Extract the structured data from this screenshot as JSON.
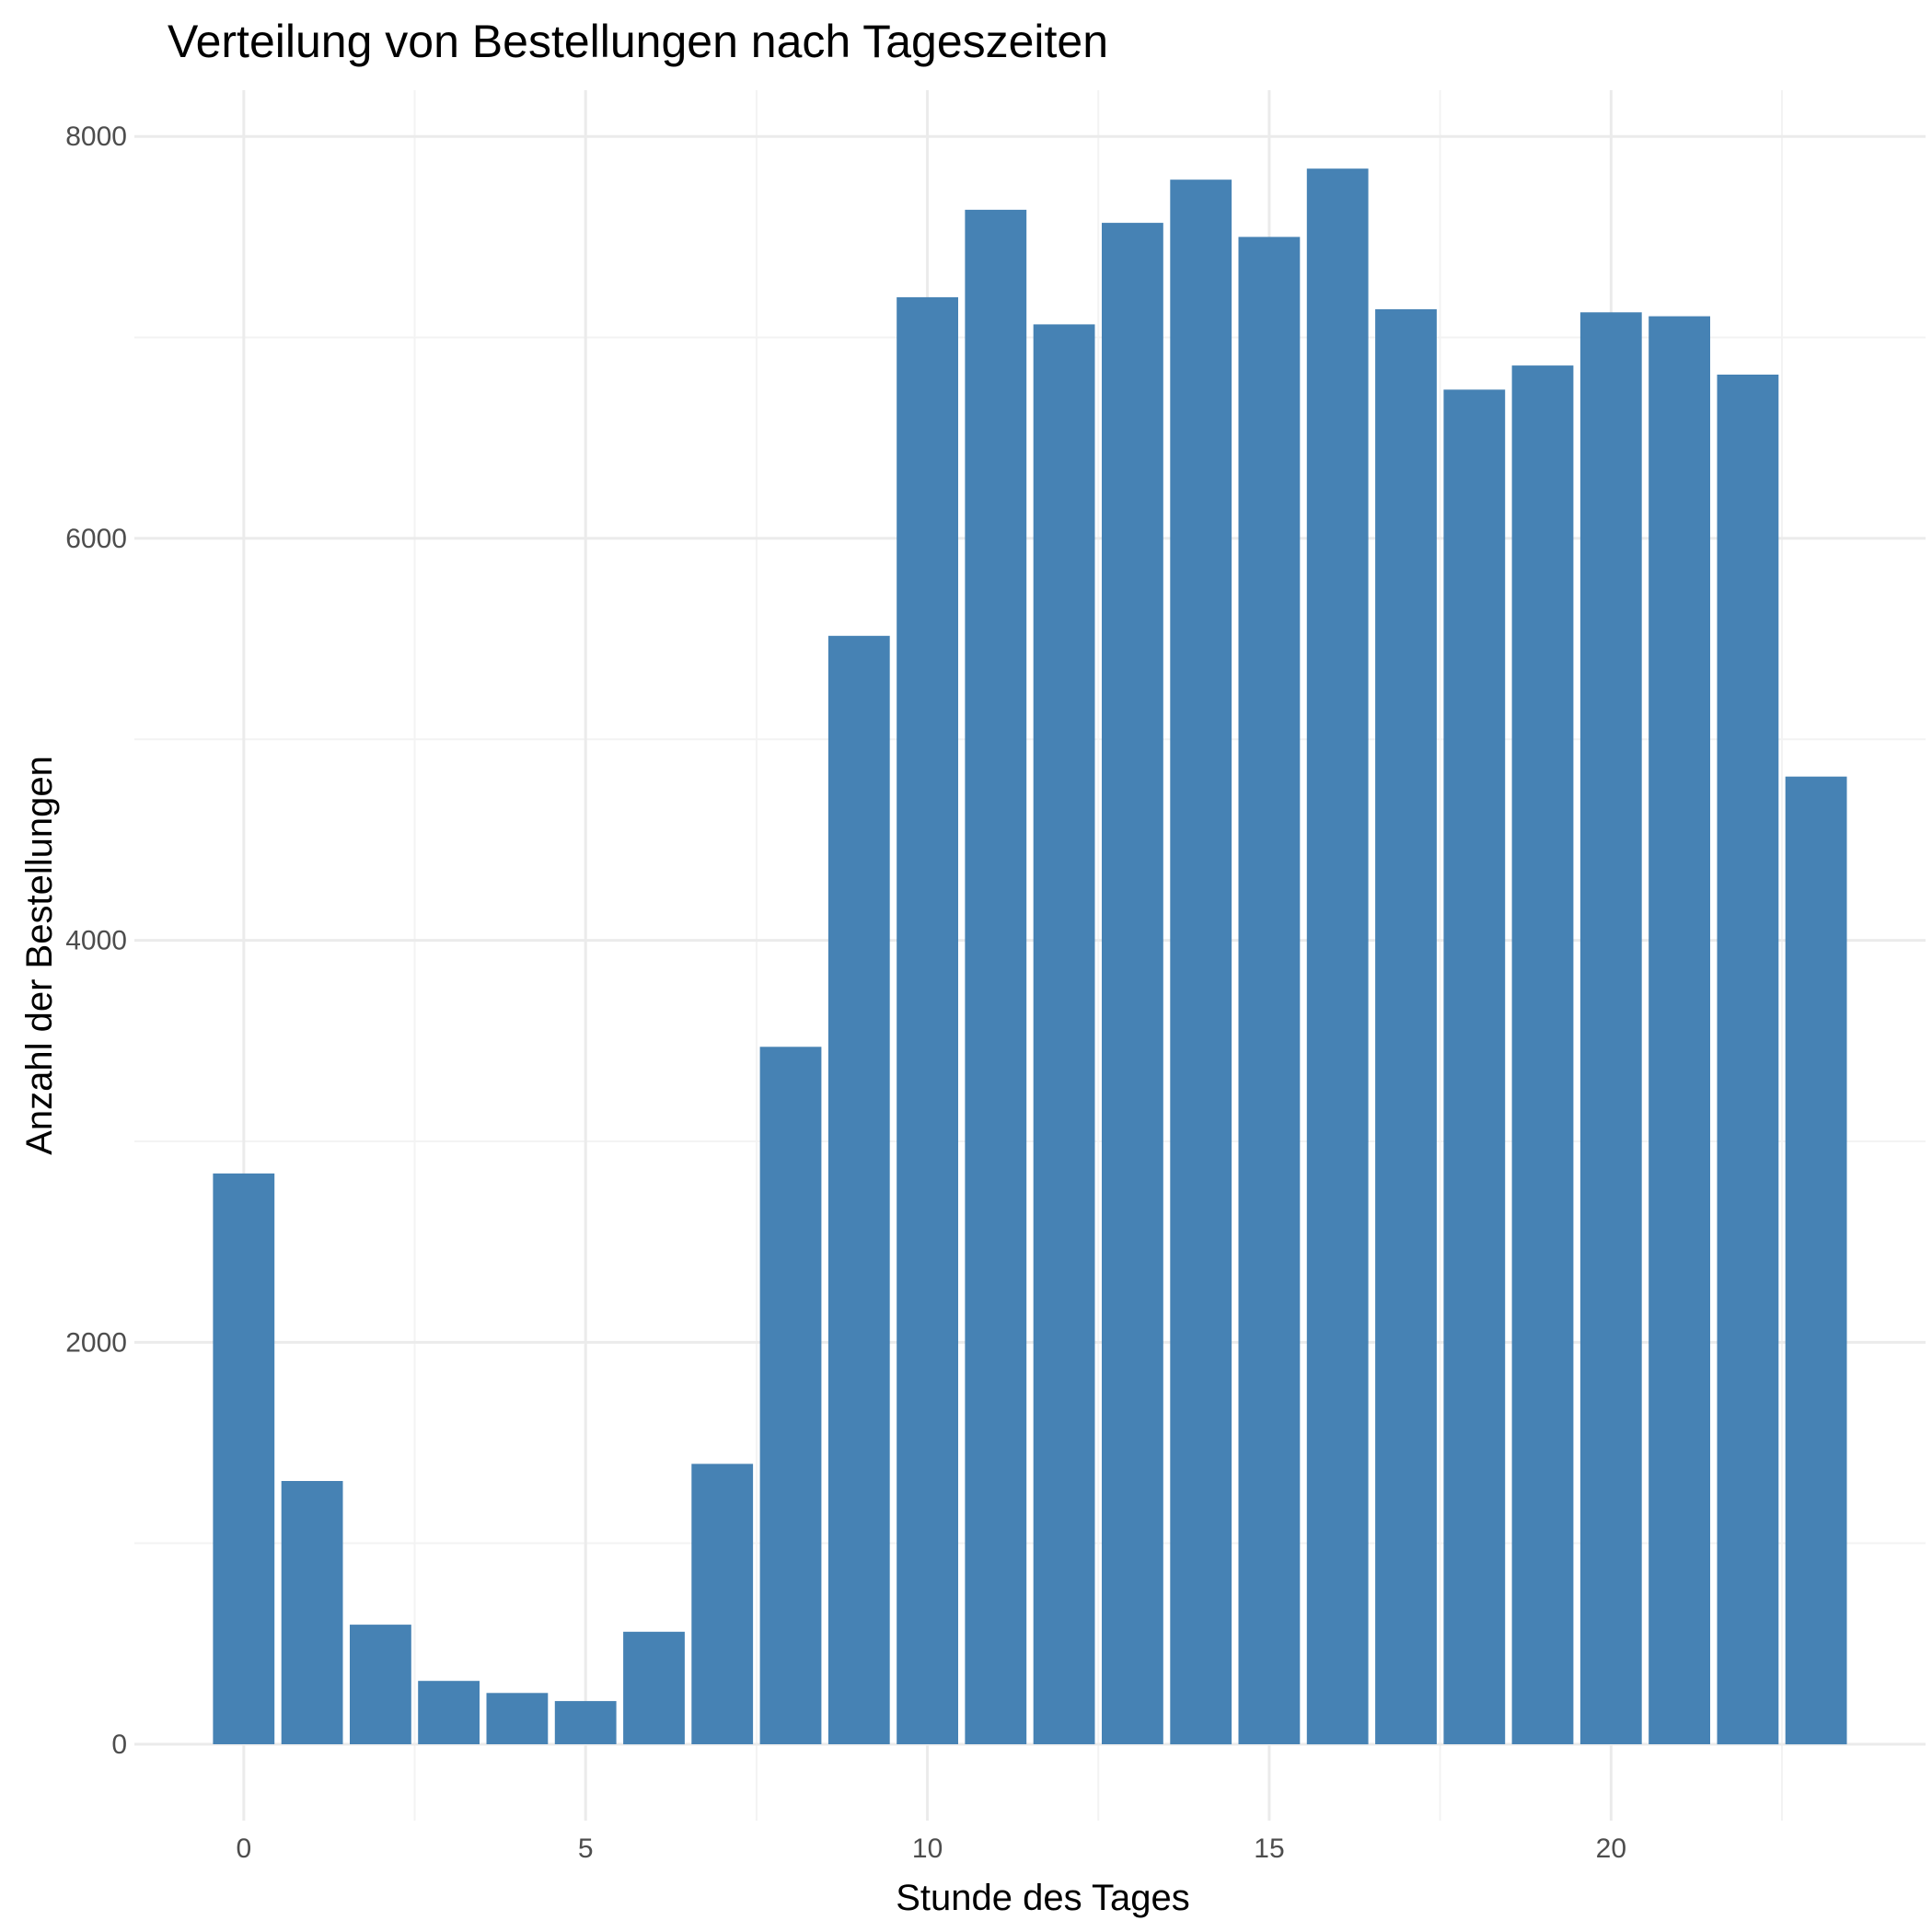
{
  "chart_data": {
    "type": "bar",
    "title": "Verteilung von Bestellungen nach Tageszeiten",
    "xlabel": "Stunde des Tages",
    "ylabel": "Anzahl der Bestellungen",
    "x": [
      0,
      1,
      2,
      3,
      4,
      5,
      6,
      7,
      8,
      9,
      10,
      11,
      12,
      13,
      14,
      15,
      16,
      17,
      18,
      19,
      20,
      21,
      22,
      23
    ],
    "values": [
      2840,
      1310,
      595,
      315,
      255,
      215,
      560,
      1395,
      3470,
      5515,
      7200,
      7635,
      7065,
      7570,
      7785,
      7500,
      7840,
      7140,
      6740,
      6860,
      7125,
      7105,
      6815,
      4815
    ],
    "xlim": [
      -1.6,
      24.6
    ],
    "ylim": [
      -380,
      8230
    ],
    "x_ticks": [
      0,
      5,
      10,
      15,
      20
    ],
    "y_ticks": [
      0,
      2000,
      4000,
      6000,
      8000
    ],
    "grid": true,
    "bar_color": "#4682b4"
  }
}
